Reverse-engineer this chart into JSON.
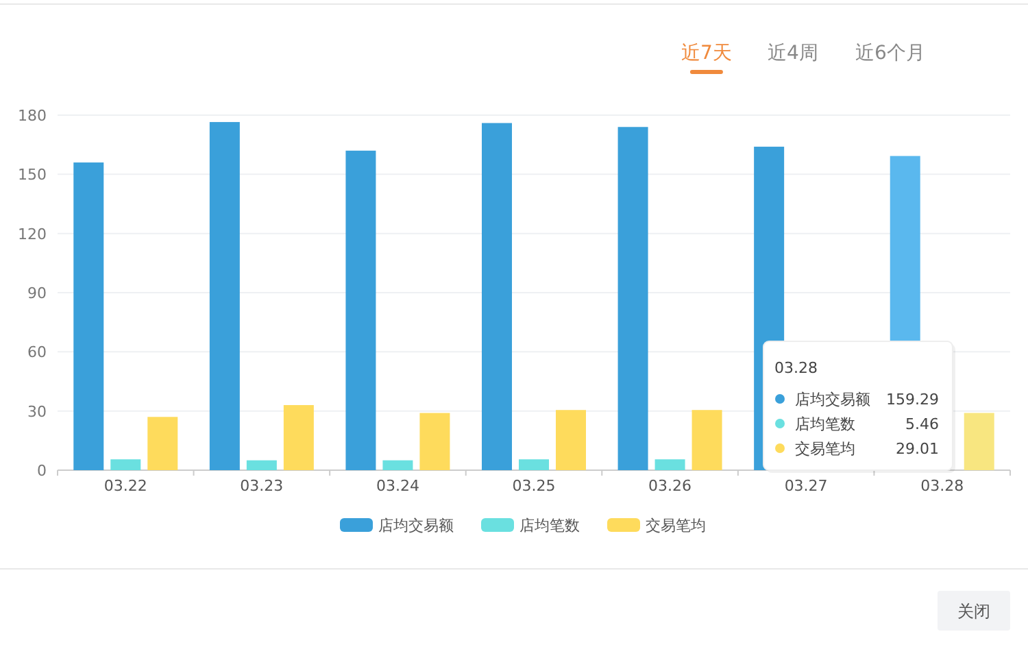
{
  "chart_data": {
    "type": "bar",
    "categories": [
      "03.22",
      "03.23",
      "03.24",
      "03.25",
      "03.26",
      "03.27",
      "03.28"
    ],
    "series": [
      {
        "name": "店均交易额",
        "color": "#3aa0da",
        "colors": [
          "#3aa0da",
          "#3aa0da",
          "#3aa0da",
          "#3aa0da",
          "#3aa0da",
          "#3aa0da",
          "#5ab8ee"
        ],
        "values": [
          156,
          176.5,
          162,
          176,
          174,
          164,
          159.29
        ]
      },
      {
        "name": "店均笔数",
        "color": "#6ae0e0",
        "values": [
          5.5,
          5,
          5,
          5.5,
          5.5,
          null,
          null
        ]
      },
      {
        "name": "交易笔均",
        "color": "#fedb5c",
        "colors": [
          "#fedb5c",
          "#fedb5c",
          "#fedb5c",
          "#fedb5c",
          "#fedb5c",
          null,
          "#f8e680"
        ],
        "values": [
          27,
          33,
          29,
          30.5,
          30.5,
          null,
          29.01
        ]
      }
    ],
    "ylim": [
      0,
      180
    ],
    "yticks": [
      0,
      30,
      60,
      90,
      120,
      150,
      180
    ],
    "grid": "y",
    "legend": "bottom",
    "annotations": [
      "近7天",
      "近4周",
      "近6个月",
      "03.28",
      "店均交易额",
      "159.29",
      "店均笔数",
      "5.46",
      "交易笔均",
      "29.01",
      "关闭"
    ]
  }
}
